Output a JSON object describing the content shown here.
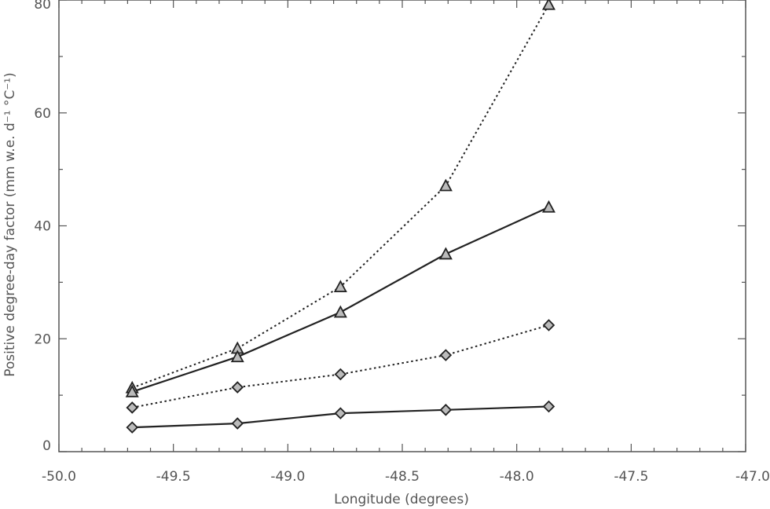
{
  "chart_data": {
    "type": "line",
    "xlabel": "Longitude (degrees)",
    "ylabel": "Positive degree-day factor (mm w.e. d⁻¹ °C⁻¹)",
    "xlim": [
      -50.0,
      -47.0
    ],
    "ylim": [
      0,
      80
    ],
    "x_ticks": [
      -50.0,
      -49.5,
      -49.0,
      -48.5,
      -48.0,
      -47.5,
      -47.0
    ],
    "x_tick_labels": [
      "-50.0",
      "-49.5",
      "-49.0",
      "-48.5",
      "-48.0",
      "-47.5",
      "-47.0"
    ],
    "y_ticks": [
      0,
      20,
      40,
      60,
      80
    ],
    "y_tick_labels": [
      "0",
      "20",
      "40",
      "60",
      "80"
    ],
    "grid": false,
    "x": [
      -49.68,
      -49.22,
      -48.77,
      -48.31,
      -47.86
    ],
    "series": [
      {
        "marker": "triangle",
        "line_style": "dotted",
        "color": "#222222",
        "values": [
          11.3,
          18.3,
          29.2,
          47.1,
          79.2
        ]
      },
      {
        "marker": "triangle",
        "line_style": "solid",
        "color": "#222222",
        "values": [
          10.6,
          16.8,
          24.7,
          35.0,
          43.3
        ]
      },
      {
        "marker": "diamond",
        "line_style": "dotted",
        "color": "#222222",
        "values": [
          7.8,
          11.4,
          13.7,
          17.1,
          22.4
        ]
      },
      {
        "marker": "diamond",
        "line_style": "solid",
        "color": "#222222",
        "values": [
          4.3,
          5.0,
          6.8,
          7.4,
          8.0
        ]
      }
    ]
  }
}
